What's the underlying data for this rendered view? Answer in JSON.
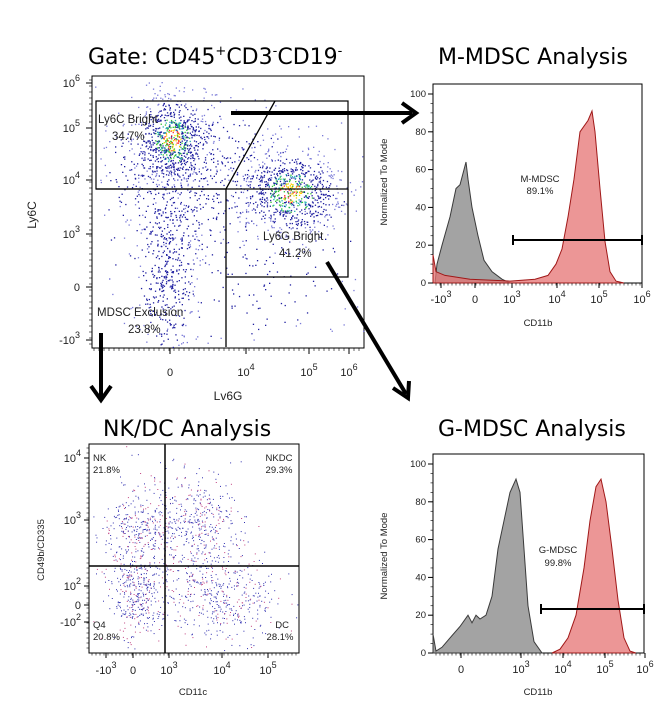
{
  "chart_data": [
    {
      "id": "gate",
      "type": "scatter",
      "title": "Gate: CD45+CD3-CD19-",
      "title_parts": {
        "base": "Gate: CD45",
        "sup1": "+",
        "mid1": "CD3",
        "sup2": "-",
        "mid2": "CD19",
        "sup3": "-"
      },
      "xlabel": "Lv6G",
      "ylabel": "Ly6C",
      "xticks": [
        {
          "label": "0",
          "v": 0
        },
        {
          "label": "10",
          "exp": "4",
          "v": 4
        },
        {
          "label": "10",
          "exp": "5",
          "v": 5
        },
        {
          "label": "10",
          "exp": "6",
          "v": 6
        }
      ],
      "yticks": [
        {
          "label": "10",
          "exp": "6",
          "v": 6
        },
        {
          "label": "10",
          "exp": "5",
          "v": 5
        },
        {
          "label": "10",
          "exp": "4",
          "v": 4
        },
        {
          "label": "10",
          "exp": "3",
          "v": 3
        },
        {
          "label": "0",
          "v": 0
        },
        {
          "label": "-10",
          "exp": "3",
          "v": -3
        }
      ],
      "gates": [
        {
          "name": "Ly6C Bright",
          "percent": "34.7%"
        },
        {
          "name": "Ly6G Bright",
          "percent": "41.2%"
        },
        {
          "name": "MDSC Exclusion",
          "percent": "23.8%"
        }
      ],
      "populations": [
        {
          "name": "Ly6C bright cluster",
          "x_approx": "0",
          "y_approx": "10^4.6"
        },
        {
          "name": "Ly6G bright cluster",
          "x_approx": "10^4.7",
          "y_approx": "10^3.8"
        },
        {
          "name": "double negative",
          "x_approx": "0",
          "y_approx": "0"
        }
      ]
    },
    {
      "id": "m_mdsc",
      "type": "area",
      "title": "M-MDSC Analysis",
      "xlabel": "CD11b",
      "ylabel": "Normalized To Mode",
      "ylim": [
        0,
        100
      ],
      "yticks": [
        0,
        20,
        40,
        60,
        80,
        100
      ],
      "xticks": [
        {
          "label": "-10",
          "exp": "3"
        },
        {
          "label": "0"
        },
        {
          "label": "10",
          "exp": "3"
        },
        {
          "label": "10",
          "exp": "4"
        },
        {
          "label": "10",
          "exp": "5"
        },
        {
          "label": "10",
          "exp": "6"
        }
      ],
      "gate": {
        "name": "M-MDSC",
        "percent": "89.1%",
        "y_level": 22
      },
      "series": [
        {
          "name": "control (grey)",
          "color": "#999999",
          "peak_x": "~0",
          "peak_y": 64
        },
        {
          "name": "sample (red)",
          "color": "#e57373",
          "peak_x": "~10^4.7",
          "peak_y": 91
        }
      ]
    },
    {
      "id": "nk_dc",
      "type": "scatter",
      "title": "NK/DC Analysis",
      "xlabel": "CD11c",
      "ylabel": "CD49b/CD335",
      "xticks": [
        {
          "label": "-10",
          "exp": "3"
        },
        {
          "label": "0"
        },
        {
          "label": "10",
          "exp": "3"
        },
        {
          "label": "10",
          "exp": "4"
        },
        {
          "label": "10",
          "exp": "5"
        }
      ],
      "yticks": [
        {
          "label": "10",
          "exp": "4"
        },
        {
          "label": "10",
          "exp": "3"
        },
        {
          "label": "10",
          "exp": "2"
        },
        {
          "label": "0"
        },
        {
          "label": "-10",
          "exp": "2"
        }
      ],
      "quadrants": [
        {
          "name": "NK",
          "percent": "21.8%",
          "pos": "top-left"
        },
        {
          "name": "NKDC",
          "percent": "29.3%",
          "pos": "top-right"
        },
        {
          "name": "Q4",
          "percent": "20.8%",
          "pos": "bottom-left"
        },
        {
          "name": "DC",
          "percent": "28.1%",
          "pos": "bottom-right"
        }
      ]
    },
    {
      "id": "g_mdsc",
      "type": "area",
      "title": "G-MDSC Analysis",
      "xlabel": "CD11b",
      "ylabel": "Normalized To Mode",
      "ylim": [
        0,
        100
      ],
      "yticks": [
        0,
        20,
        40,
        60,
        80,
        100
      ],
      "xticks": [
        {
          "label": "0"
        },
        {
          "label": "10",
          "exp": "3"
        },
        {
          "label": "10",
          "exp": "4"
        },
        {
          "label": "10",
          "exp": "5"
        },
        {
          "label": "10",
          "exp": "6"
        }
      ],
      "gate": {
        "name": "G-MDSC",
        "percent": "99.8%",
        "y_level": 22
      },
      "series": [
        {
          "name": "control (grey)",
          "color": "#999999",
          "peak_x": "~10^3",
          "peak_y": 92
        },
        {
          "name": "sample (red)",
          "color": "#e57373",
          "peak_x": "~10^5",
          "peak_y": 92
        }
      ]
    }
  ],
  "colors": {
    "grey_fill": "#a0a0a0",
    "grey_line": "#444444",
    "red_fill": "#e88c8c",
    "red_line": "#b22222",
    "dot": "#1a1a8c"
  }
}
